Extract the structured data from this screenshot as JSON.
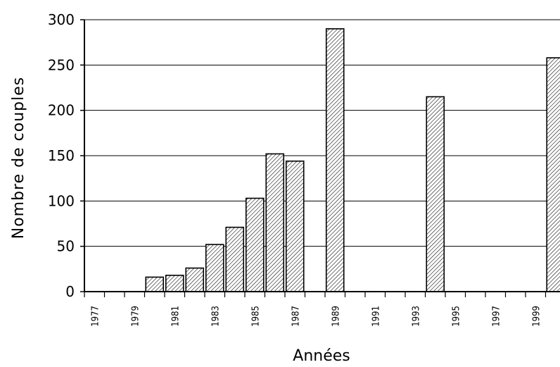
{
  "chart_data": {
    "type": "bar",
    "title": "",
    "xlabel": "Années",
    "ylabel": "Nombre de couples",
    "ylim": [
      0,
      300
    ],
    "yticks": [
      0,
      50,
      100,
      150,
      200,
      250,
      300
    ],
    "grid": true,
    "legend": "none",
    "bar_fill": "hatched",
    "categories": [
      "1977",
      "1978",
      "1979",
      "1980",
      "1981",
      "1982",
      "1983",
      "1984",
      "1985",
      "1986",
      "1987",
      "1988",
      "1989",
      "1990",
      "1991",
      "1992",
      "1993",
      "1994",
      "1995",
      "1996",
      "1997",
      "1998",
      "1999",
      "2000"
    ],
    "x_tick_labels": [
      "1977",
      "1979",
      "1981",
      "1983",
      "1985",
      "1987",
      "1989",
      "1991",
      "1993",
      "1995",
      "1997",
      "1999"
    ],
    "values": [
      0,
      0,
      0,
      16,
      18,
      26,
      52,
      71,
      103,
      152,
      144,
      0,
      290,
      0,
      0,
      0,
      0,
      215,
      0,
      0,
      0,
      0,
      0,
      258
    ]
  }
}
